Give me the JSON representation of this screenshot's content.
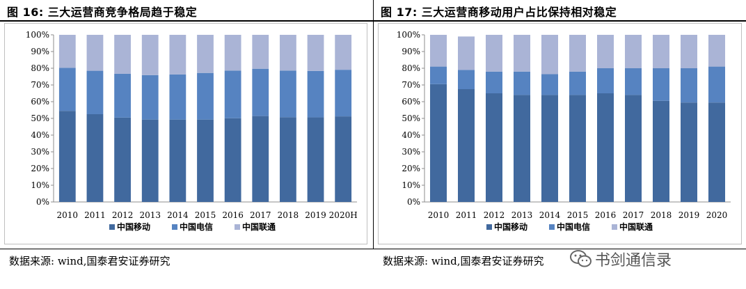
{
  "left": {
    "title": "图  16:  三大运营商竞争格局趋于稳定",
    "source": "数据来源:  wind,国泰君安证券研究"
  },
  "right": {
    "title": "图  17:  三大运营商移动用户占比保持相对稳定",
    "source": "数据来源:  wind,国泰君安证券研究"
  },
  "watermark": "书剑通信录",
  "chart_data": [
    {
      "type": "bar",
      "stacked": true,
      "categories": [
        "2010",
        "2011",
        "2012",
        "2013",
        "2014",
        "2015",
        "2016",
        "2017",
        "2018",
        "2019",
        "2020H"
      ],
      "series": [
        {
          "name": "中国移动",
          "color": "#41699e",
          "values": [
            54.5,
            52.5,
            50.5,
            49.3,
            49.3,
            49.3,
            50.1,
            51.4,
            50.7,
            50.6,
            51.2
          ]
        },
        {
          "name": "中国电信",
          "color": "#5683c1",
          "values": [
            25.8,
            26.0,
            26.2,
            26.6,
            27.0,
            27.9,
            28.5,
            28.3,
            27.9,
            27.8,
            27.9
          ]
        },
        {
          "name": "中国联通",
          "color": "#aab4d6",
          "values": [
            19.7,
            21.5,
            23.3,
            24.1,
            23.7,
            22.8,
            21.4,
            20.3,
            21.4,
            21.6,
            20.9
          ]
        }
      ],
      "ylim": [
        0,
        100
      ],
      "yticks": [
        "0%",
        "10%",
        "20%",
        "30%",
        "40%",
        "50%",
        "60%",
        "70%",
        "80%",
        "90%",
        "100%"
      ],
      "legend_position": "bottom",
      "grid": false
    },
    {
      "type": "bar",
      "stacked": true,
      "categories": [
        "2010",
        "2011",
        "2012",
        "2013",
        "2014",
        "2015",
        "2016",
        "2017",
        "2018",
        "2019",
        "2020"
      ],
      "series": [
        {
          "name": "中国移动",
          "color": "#41699e",
          "values": [
            70.5,
            67.5,
            65.0,
            64.0,
            64.0,
            64.0,
            65.0,
            64.0,
            60.5,
            59.5,
            59.5
          ]
        },
        {
          "name": "中国电信",
          "color": "#5683c1",
          "values": [
            10.5,
            11.5,
            13.0,
            14.0,
            12.5,
            14.0,
            15.0,
            16.0,
            19.5,
            20.5,
            21.5
          ]
        },
        {
          "name": "中国联通",
          "color": "#aab4d6",
          "values": [
            19.0,
            20.0,
            22.0,
            22.0,
            23.5,
            22.0,
            20.0,
            20.0,
            20.0,
            20.0,
            19.0
          ]
        }
      ],
      "ylim": [
        0,
        100
      ],
      "yticks": [
        "0%",
        "10%",
        "20%",
        "30%",
        "40%",
        "50%",
        "60%",
        "70%",
        "80%",
        "90%",
        "100%"
      ],
      "legend_position": "bottom",
      "grid": false
    }
  ]
}
